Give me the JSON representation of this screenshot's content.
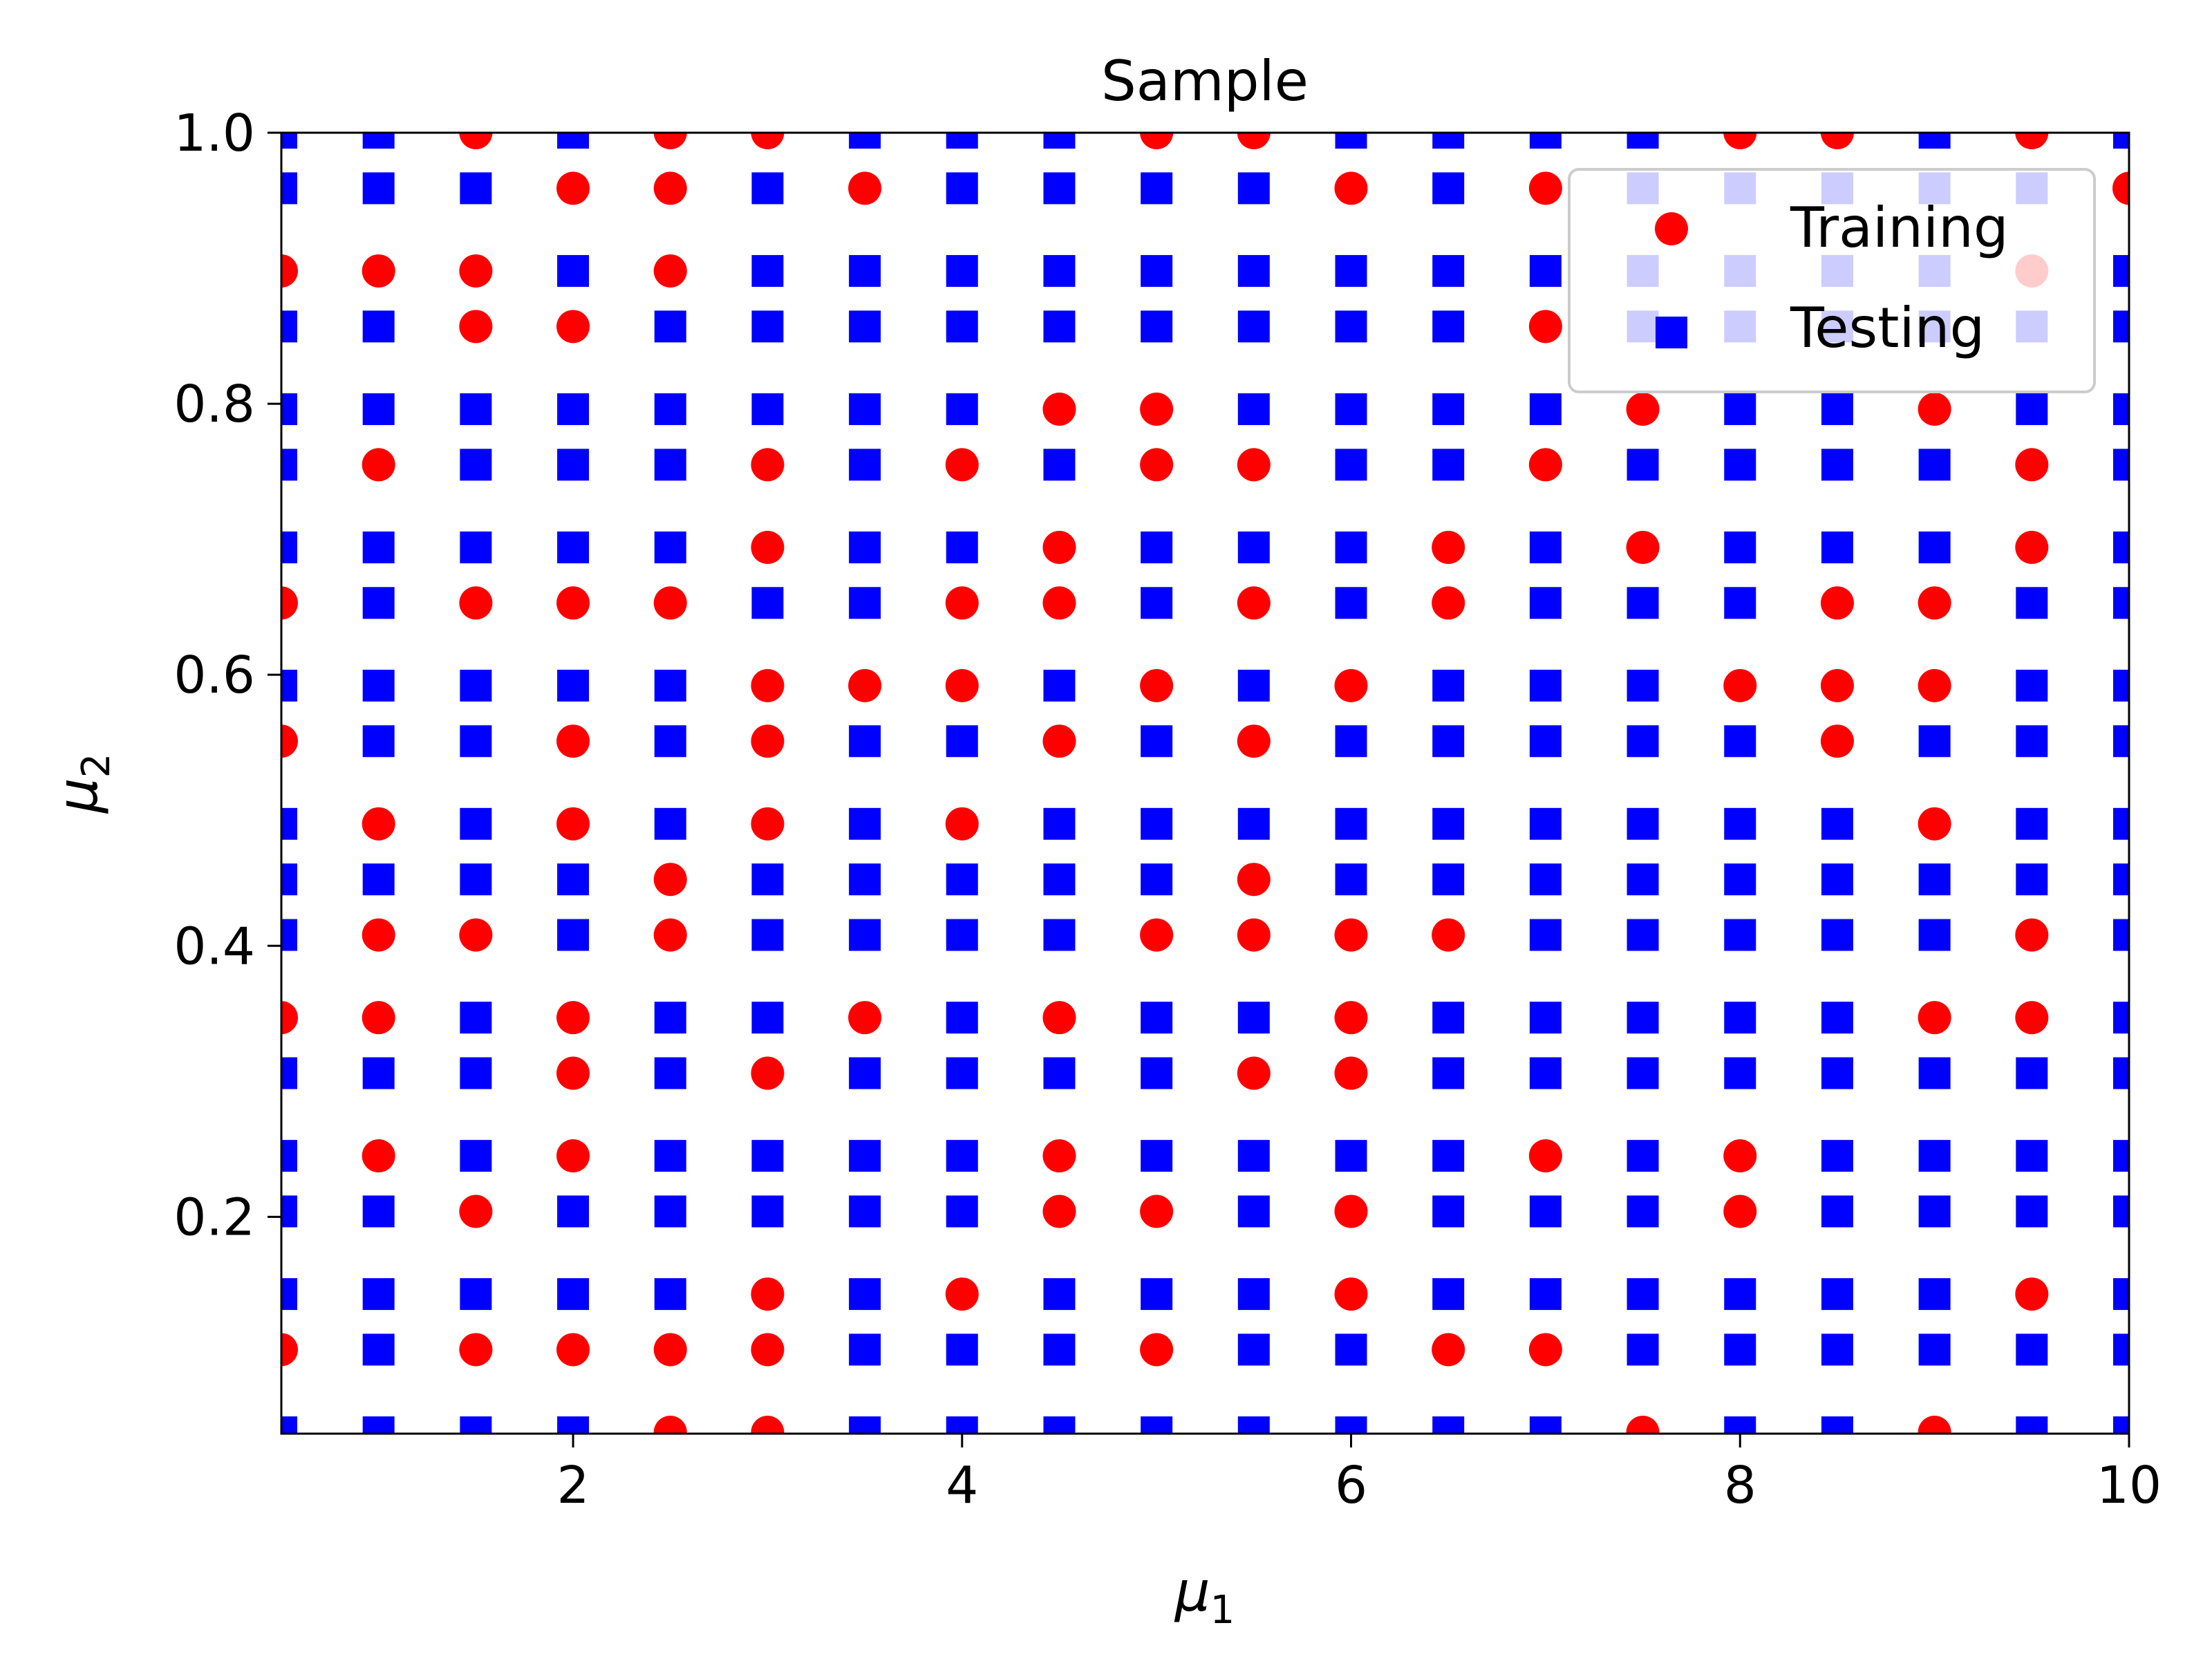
{
  "chart_data": {
    "type": "scatter",
    "title": "Sample",
    "xlabel": {
      "symbol": "μ",
      "subscript": "1"
    },
    "ylabel": {
      "symbol": "μ",
      "subscript": "2"
    },
    "xlim": [
      0.5,
      10
    ],
    "ylim": [
      0.04,
      1.0
    ],
    "xticks": [
      2,
      4,
      6,
      8,
      10
    ],
    "xtick_labels": [
      "2",
      "4",
      "6",
      "8",
      "10"
    ],
    "yticks": [
      0.2,
      0.4,
      0.6,
      0.8,
      1.0
    ],
    "ytick_labels": [
      "0.2",
      "0.4",
      "0.6",
      "0.8",
      "1.0"
    ],
    "grid": false,
    "legend": {
      "position": "top-right",
      "entries": [
        "Training",
        "Testing"
      ]
    },
    "x_grid": [
      0.5,
      1,
      1.5,
      2,
      2.5,
      3,
      3.5,
      4,
      4.5,
      5,
      5.5,
      6,
      6.5,
      7,
      7.5,
      8,
      8.5,
      9,
      9.5,
      10
    ],
    "y_grid": [
      1.0,
      0.959,
      0.898,
      0.857,
      0.796,
      0.755,
      0.694,
      0.653,
      0.592,
      0.551,
      0.49,
      0.449,
      0.408,
      0.347,
      0.306,
      0.245,
      0.204,
      0.143,
      0.102,
      0.041
    ],
    "series": [
      {
        "name": "Training",
        "marker": "circle",
        "color": "#ff0000"
      },
      {
        "name": "Testing",
        "marker": "square",
        "color": "#0000ff"
      }
    ],
    "grid_pattern": [
      "SSTSTTSSSTTSSSSTTSTS",
      "SSSTTSTSSSSTSTSSSSST",
      "TTTSTSSSSSSSSSSSSSTS",
      "SSTTSSSSSSSSSTSSSSSS",
      "SSSSSSSSTTSSSSTSSTSS",
      "STSSSTSTSTTSSTSSSSTS",
      "SSSSSTSSTSSSTSTSSSTS",
      "TSTTTSSTTSTSTSSSTTSS",
      "SSSSSTTTSTSTSSSTTTSS",
      "TSSTSTSSTSTSSSSSTSSS",
      "STSTSTSTSSSSSSSSSTSS",
      "SSSSTSSSSSTSSSSSSSSS",
      "STTSTSSSSTTTTSSSSSTS",
      "TTSTSSTSTSSTSSSSSTTS",
      "SSSTSTSSSSTTSSSSSSSS",
      "STSTSSSSTSSSSTSTSSSS",
      "SSTSSSSSTTSTSSSTSSSS",
      "SSSSSTSTSSSTSSSSSSTS",
      "TSTTTTSSSTSSTTSSSSSS",
      "SSSSTTSSSSSSSSTSSTSS"
    ]
  }
}
